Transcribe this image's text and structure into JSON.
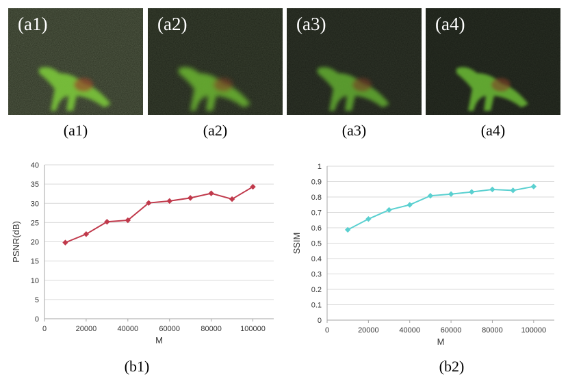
{
  "panels": [
    {
      "tag": "(a1)",
      "caption": "(a1)"
    },
    {
      "tag": "(a2)",
      "caption": "(a2)"
    },
    {
      "tag": "(a3)",
      "caption": "(a3)"
    },
    {
      "tag": "(a4)",
      "caption": "(a4)"
    }
  ],
  "captions": {
    "b1": "(b1)",
    "b2": "(b2)"
  },
  "colors": {
    "psnr": "#c0394b",
    "ssim": "#5ad0d0",
    "grid": "#d9d9d9",
    "axis": "#a6a6a6"
  },
  "chart_data": [
    {
      "type": "line",
      "title": "",
      "xlabel": "M",
      "ylabel": "PSNR(dB)",
      "xlim": [
        0,
        110000
      ],
      "ylim": [
        0,
        40
      ],
      "xticks": [
        0,
        20000,
        40000,
        60000,
        80000,
        100000
      ],
      "xtick_labels": [
        "0",
        "20000",
        "40000",
        "60000",
        "80000",
        "100000"
      ],
      "yticks": [
        0,
        5,
        10,
        15,
        20,
        25,
        30,
        35,
        40
      ],
      "ytick_labels": [
        "0",
        "5",
        "10",
        "15",
        "20",
        "25",
        "30",
        "35",
        "40"
      ],
      "grid": true,
      "marker": "diamond",
      "x": [
        10000,
        20000,
        30000,
        40000,
        50000,
        60000,
        70000,
        80000,
        90000,
        100000
      ],
      "y": [
        19.8,
        22.0,
        25.2,
        25.6,
        30.1,
        30.6,
        31.4,
        32.6,
        31.1,
        34.3
      ]
    },
    {
      "type": "line",
      "title": "",
      "xlabel": "M",
      "ylabel": "SSIM",
      "xlim": [
        0,
        110000
      ],
      "ylim": [
        0,
        1
      ],
      "xticks": [
        0,
        20000,
        40000,
        60000,
        80000,
        100000
      ],
      "xtick_labels": [
        "0",
        "20000",
        "40000",
        "60000",
        "80000",
        "100000"
      ],
      "yticks": [
        0,
        0.1,
        0.2,
        0.3,
        0.4,
        0.5,
        0.6,
        0.7,
        0.8,
        0.9,
        1
      ],
      "ytick_labels": [
        "0",
        "0.1",
        "0.2",
        "0.3",
        "0.4",
        "0.5",
        "0.6",
        "0.7",
        "0.8",
        "0.9",
        "1"
      ],
      "grid": true,
      "marker": "diamond",
      "x": [
        10000,
        20000,
        30000,
        40000,
        50000,
        60000,
        70000,
        80000,
        90000,
        100000
      ],
      "y": [
        0.587,
        0.657,
        0.716,
        0.749,
        0.808,
        0.819,
        0.833,
        0.849,
        0.843,
        0.868
      ]
    }
  ]
}
